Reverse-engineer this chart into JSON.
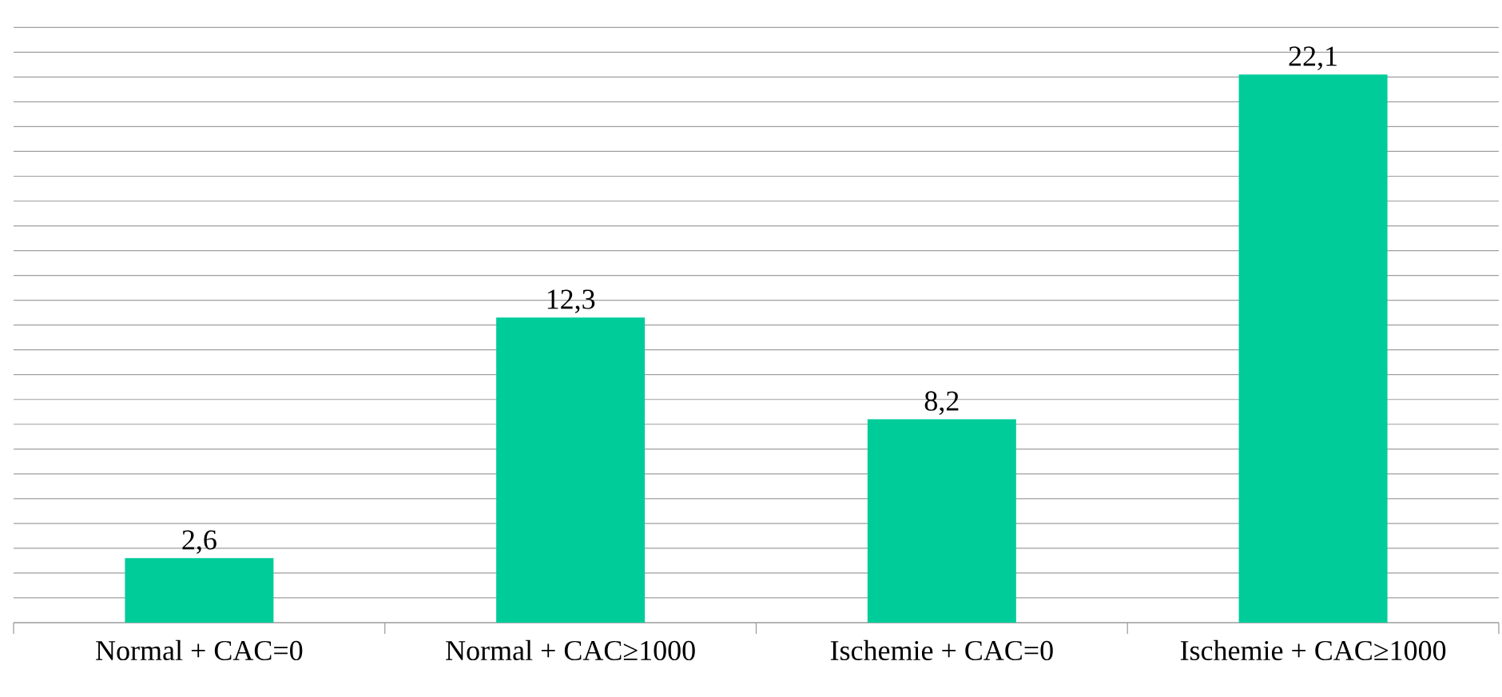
{
  "chart_data": {
    "type": "bar",
    "categories": [
      "Normal + CAC=0",
      "Normal + CAC≥1000",
      "Ischemie + CAC=0",
      "Ischemie + CAC≥1000"
    ],
    "values": [
      2.6,
      12.3,
      8.2,
      22.1
    ],
    "value_labels": [
      "2,6",
      "12,3",
      "8,2",
      "22,1"
    ],
    "color": "#00cc99",
    "grid": "y",
    "tick_labels": "x"
  }
}
